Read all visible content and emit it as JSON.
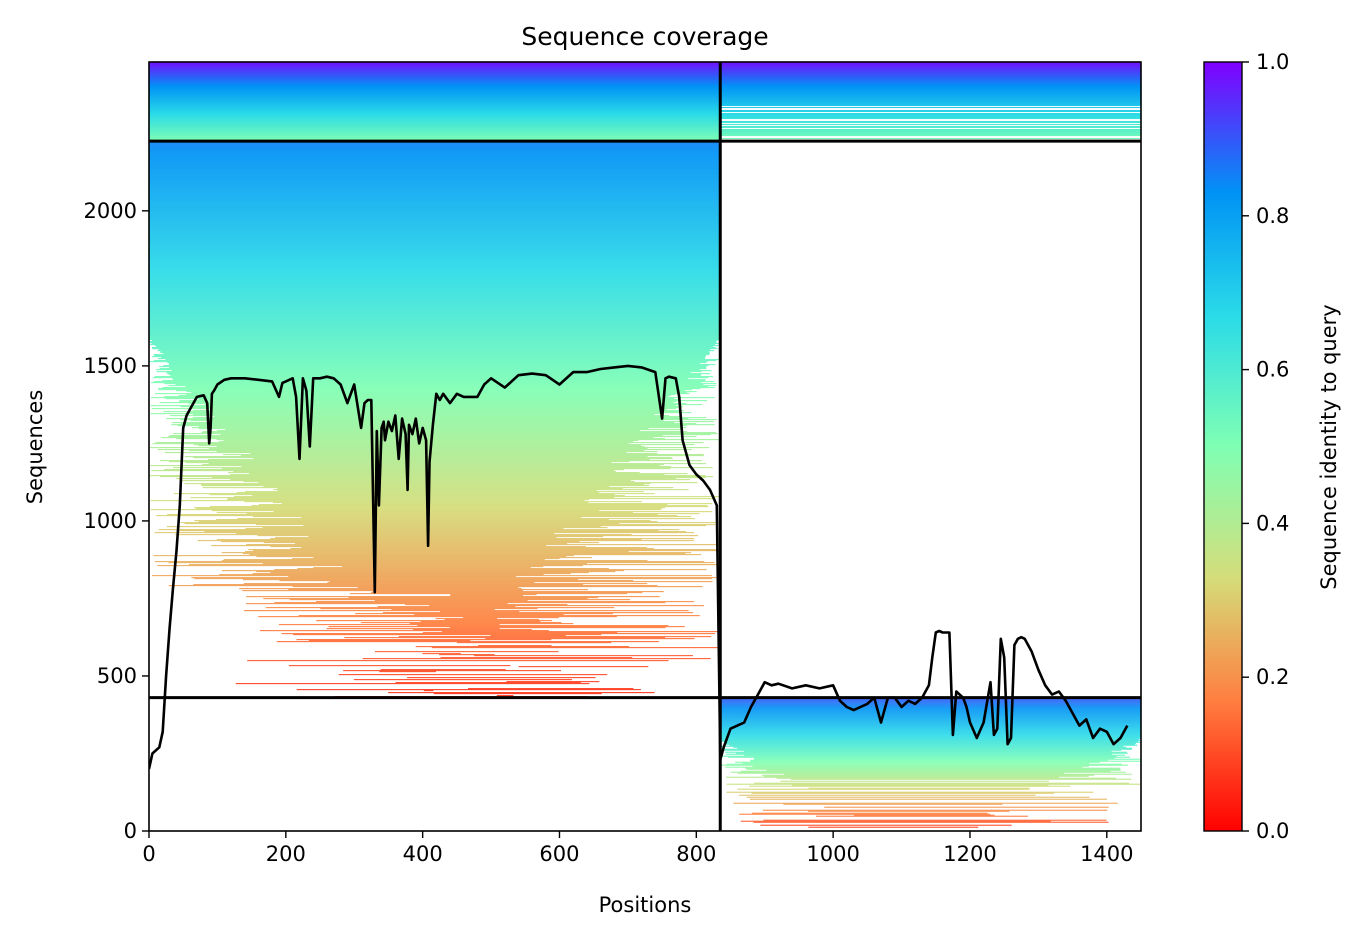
{
  "chart_data": {
    "type": "heatmap",
    "title": "Sequence coverage",
    "xlabel": "Positions",
    "ylabel": "Sequences",
    "xlim": [
      0,
      1450
    ],
    "ylim": [
      0,
      2480
    ],
    "xticks": [
      0,
      200,
      400,
      600,
      800,
      1000,
      1200,
      1400
    ],
    "yticks": [
      0,
      500,
      1000,
      1500,
      2000
    ],
    "grid": false,
    "colorbar": {
      "label": "Sequence identity to query",
      "range": [
        0,
        1
      ],
      "ticks": [
        0.0,
        0.2,
        0.4,
        0.6,
        0.8,
        1.0
      ],
      "tick_labels": [
        "0.0",
        "0.2",
        "0.4",
        "0.6",
        "0.8",
        "1.0"
      ],
      "colormap": "rainbow_r",
      "colors": [
        "#ff0000",
        "#ff7f40",
        "#d4dd7a",
        "#7fffb3",
        "#2adbe8",
        "#0093f5",
        "#8000ff"
      ]
    },
    "chain_boundary_x": 835,
    "row_boundaries_y": [
      430,
      2225
    ],
    "blocks": [
      {
        "name": "chain 1 paired",
        "x": [
          0,
          835
        ],
        "y": [
          2225,
          2480
        ],
        "identity_top": 0.98,
        "identity_bottom": 0.5
      },
      {
        "name": "chain 2 paired",
        "x": [
          835,
          1450
        ],
        "y": [
          2225,
          2480
        ],
        "identity_top": 0.98,
        "identity_bottom": 0.5
      },
      {
        "name": "chain 1 unpaired",
        "x": [
          0,
          835
        ],
        "y": [
          430,
          2225
        ],
        "identity_top": 0.85,
        "identity_bottom": 0.06
      },
      {
        "name": "chain 2 unpaired",
        "x": [
          835,
          1450
        ],
        "y": [
          0,
          430
        ],
        "identity_top": 0.9,
        "identity_bottom": 0.06
      }
    ],
    "coverage_line": {
      "color": "#000000",
      "x": [
        0,
        5,
        15,
        20,
        25,
        30,
        35,
        40,
        45,
        50,
        55,
        60,
        70,
        80,
        85,
        88,
        90,
        92,
        95,
        100,
        110,
        120,
        140,
        160,
        180,
        190,
        195,
        200,
        210,
        215,
        220,
        225,
        230,
        235,
        240,
        245,
        250,
        260,
        270,
        280,
        290,
        300,
        310,
        315,
        320,
        325,
        330,
        333,
        336,
        340,
        343,
        345,
        350,
        355,
        360,
        365,
        370,
        375,
        378,
        380,
        385,
        390,
        395,
        400,
        405,
        408,
        410,
        415,
        420,
        425,
        430,
        440,
        450,
        460,
        470,
        480,
        490,
        500,
        520,
        540,
        560,
        580,
        600,
        620,
        640,
        660,
        680,
        700,
        720,
        740,
        750,
        755,
        760,
        770,
        775,
        780,
        790,
        800,
        810,
        820,
        830,
        835,
        840,
        850,
        860,
        870,
        880,
        890,
        900,
        910,
        920,
        940,
        960,
        980,
        1000,
        1010,
        1020,
        1030,
        1040,
        1050,
        1060,
        1070,
        1080,
        1090,
        1100,
        1110,
        1120,
        1130,
        1140,
        1145,
        1150,
        1155,
        1160,
        1170,
        1175,
        1180,
        1185,
        1190,
        1195,
        1200,
        1210,
        1220,
        1230,
        1235,
        1240,
        1245,
        1250,
        1255,
        1260,
        1265,
        1270,
        1275,
        1280,
        1290,
        1300,
        1310,
        1320,
        1330,
        1340,
        1350,
        1360,
        1370,
        1380,
        1390,
        1400,
        1410,
        1420,
        1430,
        1440,
        1450
      ],
      "y": [
        200,
        250,
        270,
        320,
        500,
        650,
        780,
        900,
        1050,
        1300,
        1340,
        1360,
        1400,
        1405,
        1380,
        1250,
        1300,
        1410,
        1420,
        1440,
        1455,
        1460,
        1460,
        1455,
        1450,
        1400,
        1445,
        1450,
        1460,
        1400,
        1200,
        1460,
        1420,
        1240,
        1460,
        1460,
        1460,
        1465,
        1460,
        1440,
        1380,
        1440,
        1300,
        1380,
        1390,
        1390,
        770,
        1290,
        1050,
        1300,
        1320,
        1260,
        1320,
        1290,
        1340,
        1200,
        1330,
        1280,
        1100,
        1310,
        1280,
        1330,
        1250,
        1300,
        1260,
        920,
        1190,
        1310,
        1410,
        1390,
        1410,
        1380,
        1410,
        1400,
        1400,
        1400,
        1440,
        1460,
        1430,
        1470,
        1475,
        1470,
        1440,
        1480,
        1480,
        1490,
        1495,
        1500,
        1495,
        1480,
        1330,
        1460,
        1465,
        1460,
        1400,
        1260,
        1180,
        1150,
        1130,
        1100,
        1050,
        230,
        270,
        330,
        340,
        350,
        400,
        440,
        480,
        470,
        475,
        460,
        470,
        460,
        470,
        420,
        400,
        390,
        400,
        410,
        430,
        350,
        430,
        430,
        400,
        420,
        410,
        430,
        470,
        560,
        640,
        645,
        640,
        640,
        310,
        450,
        440,
        430,
        400,
        350,
        300,
        350,
        480,
        310,
        330,
        620,
        560,
        280,
        300,
        600,
        620,
        625,
        620,
        580,
        520,
        470,
        440,
        450,
        420,
        380,
        340,
        360,
        300,
        330,
        320,
        280,
        300,
        340
      ]
    }
  }
}
